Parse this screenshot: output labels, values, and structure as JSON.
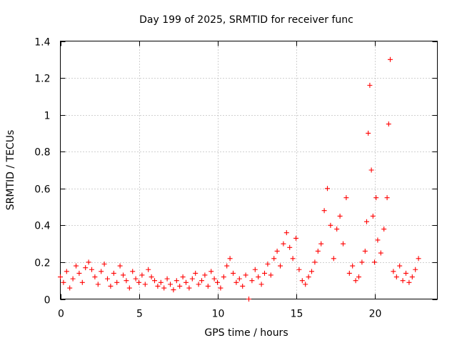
{
  "chart_data": {
    "type": "scatter",
    "title": "Day 199 of 2025, SRMTID for receiver func",
    "xlabel": "GPS time / hours",
    "ylabel": "SRMTID / TECUs",
    "xlim": [
      0,
      24
    ],
    "ylim": [
      0,
      1.4
    ],
    "xticks": [
      0,
      5,
      10,
      15,
      20
    ],
    "yticks": [
      0,
      0.2,
      0.4,
      0.6,
      0.8,
      1,
      1.2,
      1.4
    ],
    "xtick_labels": [
      "0",
      "5",
      "10",
      "15",
      "20"
    ],
    "ytick_labels": [
      "0",
      "0.2",
      "0.4",
      "0.6",
      "0.8",
      "1",
      "1.2",
      "1.4"
    ],
    "grid": true,
    "marker": "+",
    "color": "#ff0000",
    "series": [
      {
        "name": "SRMTID",
        "x": [
          0.0,
          0.2,
          0.4,
          0.6,
          0.8,
          1.0,
          1.2,
          1.4,
          1.6,
          1.8,
          2.0,
          2.2,
          2.4,
          2.6,
          2.8,
          3.0,
          3.2,
          3.4,
          3.6,
          3.8,
          4.0,
          4.2,
          4.4,
          4.6,
          4.8,
          5.0,
          5.2,
          5.4,
          5.6,
          5.8,
          6.0,
          6.2,
          6.4,
          6.6,
          6.8,
          7.0,
          7.2,
          7.4,
          7.6,
          7.8,
          8.0,
          8.2,
          8.4,
          8.6,
          8.8,
          9.0,
          9.2,
          9.4,
          9.6,
          9.8,
          10.0,
          10.2,
          10.4,
          10.6,
          10.8,
          11.0,
          11.2,
          11.4,
          11.6,
          11.8,
          12.0,
          12.2,
          12.4,
          12.6,
          12.8,
          13.0,
          13.2,
          13.4,
          13.6,
          13.8,
          14.0,
          14.2,
          14.4,
          14.6,
          14.8,
          15.0,
          15.2,
          15.4,
          15.6,
          15.8,
          16.0,
          16.2,
          16.4,
          16.6,
          16.8,
          17.0,
          17.2,
          17.4,
          17.6,
          17.8,
          18.0,
          18.2,
          18.4,
          18.6,
          18.8,
          19.0,
          19.2,
          19.4,
          19.5,
          19.6,
          19.7,
          19.8,
          19.9,
          20.0,
          20.1,
          20.2,
          20.4,
          20.6,
          20.8,
          20.9,
          21.0,
          21.2,
          21.4,
          21.6,
          21.8,
          22.0,
          22.2,
          22.4,
          22.6,
          22.8
        ],
        "y": [
          0.12,
          0.09,
          0.15,
          0.06,
          0.11,
          0.18,
          0.14,
          0.09,
          0.17,
          0.2,
          0.16,
          0.12,
          0.08,
          0.15,
          0.19,
          0.11,
          0.07,
          0.14,
          0.09,
          0.18,
          0.13,
          0.1,
          0.06,
          0.15,
          0.11,
          0.09,
          0.13,
          0.08,
          0.16,
          0.12,
          0.1,
          0.07,
          0.09,
          0.06,
          0.11,
          0.08,
          0.05,
          0.1,
          0.07,
          0.12,
          0.09,
          0.06,
          0.11,
          0.14,
          0.08,
          0.1,
          0.13,
          0.07,
          0.15,
          0.11,
          0.09,
          0.06,
          0.12,
          0.18,
          0.22,
          0.14,
          0.09,
          0.11,
          0.07,
          0.13,
          0.0,
          0.1,
          0.16,
          0.12,
          0.08,
          0.14,
          0.19,
          0.13,
          0.22,
          0.26,
          0.18,
          0.3,
          0.36,
          0.28,
          0.22,
          0.33,
          0.16,
          0.1,
          0.08,
          0.12,
          0.15,
          0.2,
          0.26,
          0.3,
          0.48,
          0.6,
          0.4,
          0.22,
          0.38,
          0.45,
          0.3,
          0.55,
          0.14,
          0.18,
          0.1,
          0.12,
          0.2,
          0.26,
          0.42,
          0.9,
          1.16,
          0.7,
          0.45,
          0.2,
          0.55,
          0.32,
          0.25,
          0.38,
          0.55,
          0.95,
          1.3,
          0.15,
          0.12,
          0.18,
          0.1,
          0.14,
          0.09,
          0.12,
          0.16,
          0.22
        ]
      }
    ]
  }
}
